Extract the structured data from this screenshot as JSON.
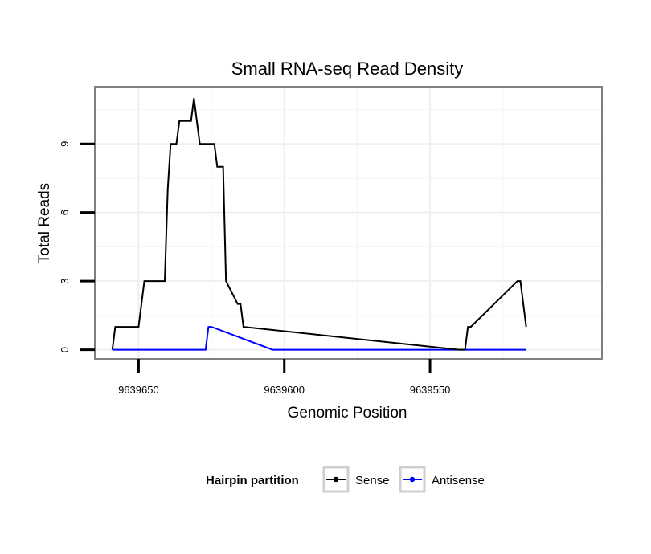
{
  "chart_data": {
    "type": "line",
    "title": "Small RNA-seq Read Density",
    "xlabel": "Genomic Position",
    "ylabel": "Total Reads",
    "xlim": [
      9639665,
      9639491
    ],
    "ylim": [
      -0.4,
      11.5
    ],
    "x_reversed": true,
    "x_ticks": [
      9639650,
      9639600,
      9639550
    ],
    "x_tick_labels": [
      "9639650",
      "9639600",
      "9639550"
    ],
    "y_ticks": [
      0,
      3,
      6,
      9
    ],
    "y_tick_labels": [
      "0",
      "3",
      "6",
      "9"
    ],
    "grid": true,
    "legend": {
      "title": "Hairpin partition",
      "position": "bottom",
      "entries": [
        "Sense",
        "Antisense"
      ]
    },
    "series": [
      {
        "name": "Sense",
        "color": "#000000",
        "x": [
          9639659,
          9639658,
          9639657,
          9639650,
          9639649,
          9639648,
          9639647,
          9639646.5,
          9639646,
          9639645,
          9639644,
          9639643,
          9639642,
          9639641,
          9639640,
          9639639,
          9639637,
          9639636,
          9639635,
          9639632,
          9639631,
          9639630,
          9639629,
          9639628,
          9639627,
          9639626,
          9639625,
          9639624,
          9639623,
          9639622,
          9639621,
          9639620,
          9639616,
          9639615,
          9639614,
          9639540,
          9639539,
          9639538,
          9639537,
          9639536,
          9639520,
          9639519,
          9639518,
          9639517
        ],
        "y": [
          0,
          1,
          1,
          1,
          2,
          3,
          3,
          3,
          3,
          3,
          3,
          3,
          3,
          3,
          7,
          9,
          9,
          10,
          10,
          10,
          11,
          10,
          9,
          9,
          9,
          9,
          9,
          9,
          8,
          8,
          8,
          3,
          2,
          2,
          1,
          0,
          0,
          0,
          1,
          1,
          3,
          3,
          2,
          1
        ]
      },
      {
        "name": "Antisense",
        "color": "#0000ff",
        "x": [
          9639659,
          9639627,
          9639626,
          9639625,
          9639604,
          9639603,
          9639602,
          9639601,
          9639600,
          9639599,
          9639590,
          9639589,
          9639588,
          9639565,
          9639564,
          9639563,
          9639562,
          9639561,
          9639560,
          9639559,
          9639550,
          9639549,
          9639548,
          9639544,
          9639543,
          9639542,
          9639541,
          9639540,
          9639539,
          9639538,
          9639537,
          9639536,
          9639535,
          9639534,
          9639533,
          9639532,
          9639531,
          9639530,
          9639529,
          9639528,
          9639527,
          9639526,
          9639525,
          9639524,
          9639523,
          9639522,
          9639521,
          9639520,
          9639519,
          9639518,
          9639517
        ],
        "y": [
          0,
          0,
          1,
          1,
          0,
          0,
          0,
          0,
          0,
          0,
          0,
          0,
          0,
          0,
          0,
          0,
          0,
          0,
          0,
          0,
          0,
          0,
          0,
          0,
          0,
          0,
          0,
          0,
          0,
          0,
          0,
          0,
          0,
          0,
          0,
          0,
          0,
          0,
          0,
          0,
          0,
          0,
          0,
          0,
          0,
          0,
          0,
          0,
          0,
          0,
          0
        ]
      }
    ]
  }
}
